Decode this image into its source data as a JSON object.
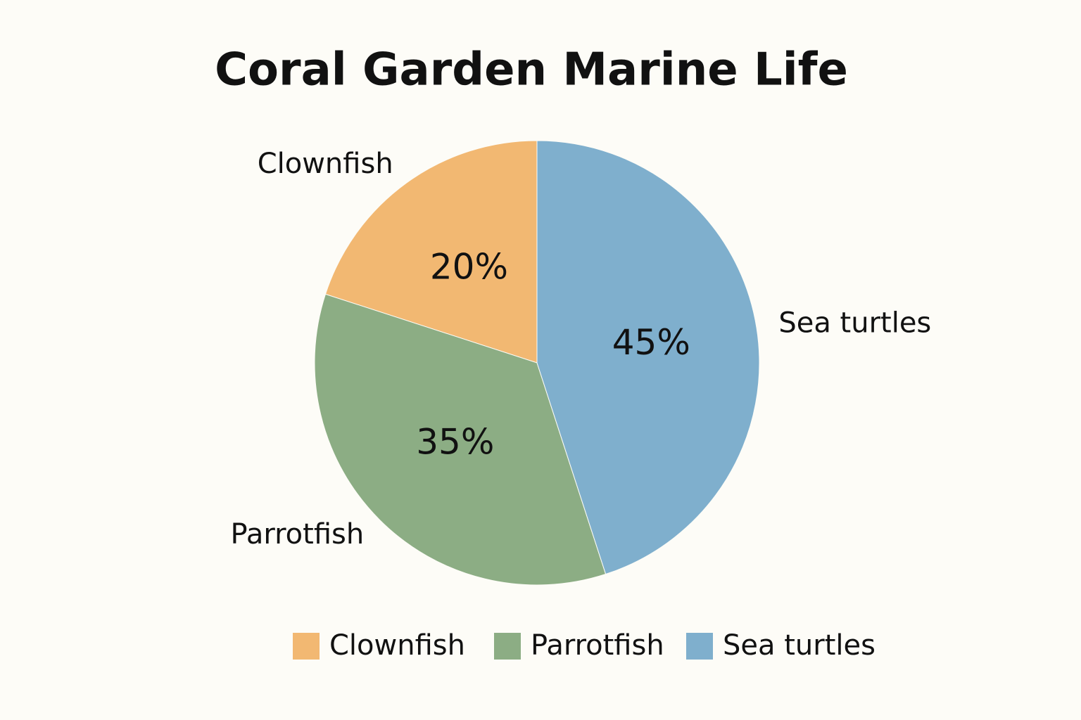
{
  "chart_data": {
    "type": "pie",
    "title": "Coral Garden Marine Life",
    "categories": [
      "Clownfish",
      "Parrotfish",
      "Sea turtles"
    ],
    "values": [
      20,
      35,
      45
    ],
    "value_labels": [
      "20%",
      "35%",
      "45%"
    ],
    "colors": [
      "#f2b872",
      "#8cad84",
      "#7fafcd"
    ],
    "legend": "bottom"
  }
}
